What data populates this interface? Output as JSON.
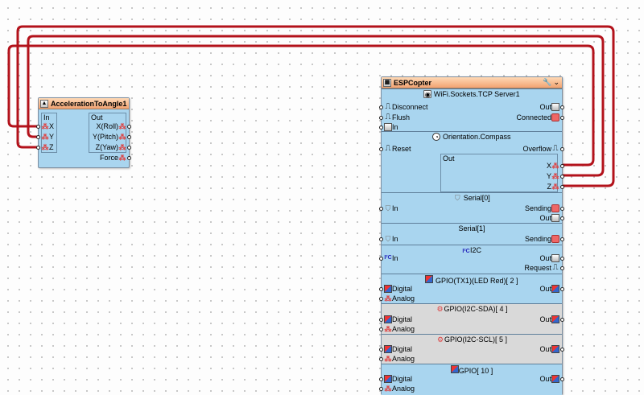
{
  "components": {
    "accel": {
      "title": "AccelerationToAngle1",
      "in_label": "In",
      "out_label": "Out",
      "inputs": [
        "X",
        "Y",
        "Z"
      ],
      "outputs": [
        "X(Roll)",
        "Y(Pitch)",
        "Z(Yaw)"
      ],
      "force": "Force"
    },
    "esp": {
      "title": "ESPCopter",
      "tcp": {
        "title": "WiFi.Sockets.TCP Server1",
        "disconnect": "Disconnect",
        "flush": "Flush",
        "in": "In",
        "out": "Out",
        "connected": "Connected"
      },
      "compass": {
        "title": "Orientation.Compass",
        "reset": "Reset",
        "overflow": "Overflow",
        "out": "Out",
        "x": "X",
        "y": "Y",
        "z": "Z"
      },
      "serial0": {
        "title": "Serial[0]",
        "in": "In",
        "sending": "Sending",
        "out": "Out"
      },
      "serial1": {
        "title": "Serial[1]",
        "in": "In",
        "sending": "Sending"
      },
      "i2c": {
        "title": "I2C",
        "in": "In",
        "out": "Out",
        "request": "Request"
      },
      "gpio1": {
        "title": "GPIO(TX1)(LED Red)[ 2 ]",
        "digital": "Digital",
        "analog": "Analog",
        "out": "Out"
      },
      "gpio2": {
        "title": "GPIO(I2C-SDA)[ 4 ]",
        "digital": "Digital",
        "analog": "Analog",
        "out": "Out"
      },
      "gpio3": {
        "title": "GPIO(I2C-SCL)[ 5 ]",
        "digital": "Digital",
        "analog": "Analog",
        "out": "Out"
      },
      "gpio4": {
        "title": "GPIO[ 10 ]",
        "digital": "Digital",
        "analog": "Analog",
        "out": "Out"
      }
    }
  },
  "colors": {
    "wire": "#b3121b",
    "header": "#f2a372",
    "body": "#a9d5ef",
    "disabled": "#d9d9d9"
  }
}
